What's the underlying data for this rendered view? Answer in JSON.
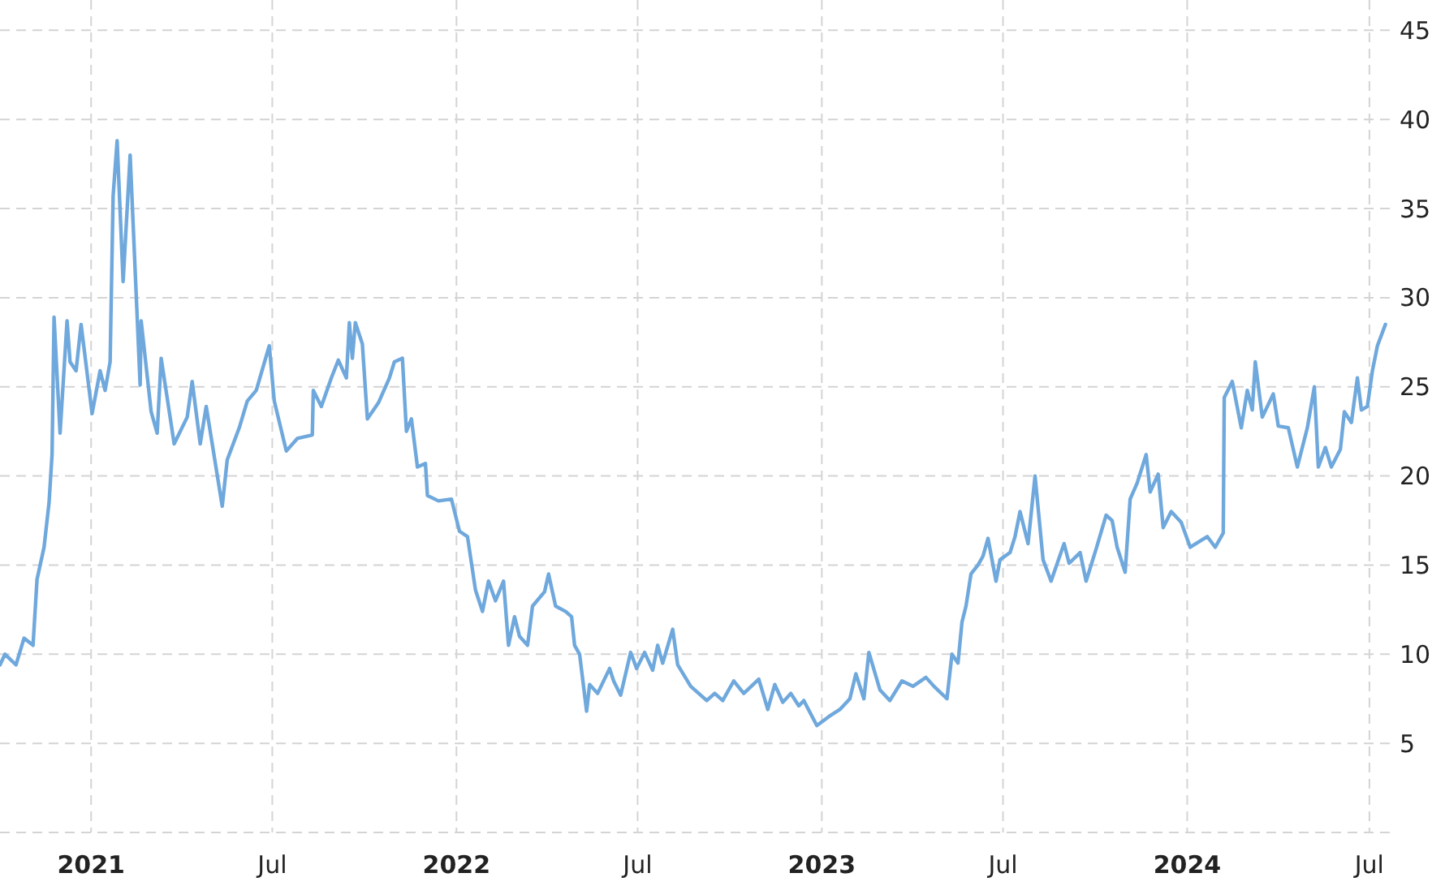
{
  "chart_data": {
    "type": "line",
    "x": [
      "2020-10-02",
      "2020-10-07",
      "2020-10-18",
      "2020-10-26",
      "2020-11-04",
      "2020-11-08",
      "2020-11-15",
      "2020-11-20",
      "2020-11-23",
      "2020-11-25",
      "2020-12-01",
      "2020-12-08",
      "2020-12-11",
      "2020-12-17",
      "2020-12-22",
      "2021-01-02",
      "2021-01-10",
      "2021-01-15",
      "2021-01-20",
      "2021-01-23",
      "2021-01-27",
      "2021-02-02",
      "2021-02-09",
      "2021-02-19",
      "2021-02-20",
      "2021-03-02",
      "2021-03-08",
      "2021-03-12",
      "2021-03-25",
      "2021-04-07",
      "2021-04-12",
      "2021-04-20",
      "2021-04-26",
      "2021-05-12",
      "2021-05-17",
      "2021-05-29",
      "2021-06-06",
      "2021-06-15",
      "2021-06-28",
      "2021-07-03",
      "2021-07-15",
      "2021-07-26",
      "2021-08-10",
      "2021-08-11",
      "2021-08-19",
      "2021-08-29",
      "2021-09-05",
      "2021-09-13",
      "2021-09-16",
      "2021-09-19",
      "2021-09-22",
      "2021-09-29",
      "2021-10-04",
      "2021-10-15",
      "2021-10-26",
      "2021-10-31",
      "2021-11-08",
      "2021-11-12",
      "2021-11-17",
      "2021-11-23",
      "2021-12-01",
      "2021-12-03",
      "2021-12-14",
      "2021-12-27",
      "2022-01-04",
      "2022-01-12",
      "2022-01-20",
      "2022-01-27",
      "2022-02-02",
      "2022-02-09",
      "2022-02-17",
      "2022-02-22",
      "2022-02-28",
      "2022-03-05",
      "2022-03-13",
      "2022-03-18",
      "2022-03-30",
      "2022-04-03",
      "2022-04-10",
      "2022-04-20",
      "2022-04-26",
      "2022-04-29",
      "2022-05-04",
      "2022-05-11",
      "2022-05-14",
      "2022-05-22",
      "2022-06-03",
      "2022-06-07",
      "2022-06-14",
      "2022-06-24",
      "2022-06-30",
      "2022-07-08",
      "2022-07-16",
      "2022-07-21",
      "2022-07-26",
      "2022-08-05",
      "2022-08-10",
      "2022-08-23",
      "2022-09-08",
      "2022-09-16",
      "2022-09-24",
      "2022-10-05",
      "2022-10-15",
      "2022-10-30",
      "2022-11-08",
      "2022-11-15",
      "2022-11-23",
      "2022-12-01",
      "2022-12-09",
      "2022-12-14",
      "2022-12-27",
      "2023-01-08",
      "2023-01-19",
      "2023-01-29",
      "2023-02-04",
      "2023-02-12",
      "2023-02-17",
      "2023-02-28",
      "2023-03-10",
      "2023-03-22",
      "2023-04-02",
      "2023-04-15",
      "2023-04-23",
      "2023-05-06",
      "2023-05-11",
      "2023-05-17",
      "2023-05-21",
      "2023-05-25",
      "2023-05-30",
      "2023-06-06",
      "2023-06-11",
      "2023-06-16",
      "2023-06-24",
      "2023-06-28",
      "2023-07-08",
      "2023-07-13",
      "2023-07-18",
      "2023-07-26",
      "2023-08-02",
      "2023-08-10",
      "2023-08-18",
      "2023-08-31",
      "2023-09-05",
      "2023-09-16",
      "2023-09-22",
      "2023-10-02",
      "2023-10-12",
      "2023-10-18",
      "2023-10-23",
      "2023-10-31",
      "2023-11-05",
      "2023-11-12",
      "2023-11-21",
      "2023-11-25",
      "2023-12-03",
      "2023-12-08",
      "2023-12-16",
      "2023-12-26",
      "2024-01-04",
      "2024-01-21",
      "2024-01-29",
      "2024-02-06",
      "2024-02-07",
      "2024-02-15",
      "2024-02-24",
      "2024-03-01",
      "2024-03-06",
      "2024-03-09",
      "2024-03-16",
      "2024-03-27",
      "2024-04-01",
      "2024-04-11",
      "2024-04-20",
      "2024-04-30",
      "2024-05-07",
      "2024-05-11",
      "2024-05-18",
      "2024-05-24",
      "2024-06-02",
      "2024-06-06",
      "2024-06-13",
      "2024-06-19",
      "2024-06-23",
      "2024-06-29",
      "2024-07-04",
      "2024-07-09",
      "2024-07-17"
    ],
    "series": [
      {
        "color": "#6fa8dc",
        "values": [
          9.4,
          10.0,
          9.4,
          10.9,
          10.5,
          14.2,
          16.0,
          18.5,
          21.2,
          28.9,
          22.4,
          28.7,
          26.4,
          25.9,
          28.5,
          23.5,
          25.9,
          24.8,
          26.4,
          35.7,
          38.8,
          30.9,
          38.0,
          25.1,
          28.7,
          23.6,
          22.4,
          26.6,
          21.8,
          23.3,
          25.3,
          21.8,
          23.9,
          18.3,
          20.9,
          22.7,
          24.2,
          24.8,
          27.3,
          24.2,
          21.4,
          22.1,
          22.3,
          24.8,
          23.9,
          25.5,
          26.5,
          25.5,
          28.6,
          26.6,
          28.6,
          27.4,
          23.2,
          24.1,
          25.5,
          26.4,
          26.6,
          22.5,
          23.2,
          20.5,
          20.7,
          18.9,
          18.6,
          18.7,
          16.9,
          16.6,
          13.6,
          12.4,
          14.1,
          13.0,
          14.1,
          10.5,
          12.1,
          11.0,
          10.5,
          12.7,
          13.5,
          14.5,
          12.7,
          12.4,
          12.1,
          10.5,
          10.0,
          6.8,
          8.3,
          7.8,
          9.2,
          8.5,
          7.7,
          10.1,
          9.2,
          10.1,
          9.1,
          10.5,
          9.5,
          11.4,
          9.4,
          8.2,
          7.4,
          7.8,
          7.4,
          8.5,
          7.8,
          8.6,
          6.9,
          8.3,
          7.3,
          7.8,
          7.1,
          7.4,
          6.0,
          6.5,
          6.9,
          7.5,
          8.9,
          7.5,
          10.1,
          8.0,
          7.4,
          8.5,
          8.2,
          8.7,
          8.2,
          7.5,
          10.0,
          9.5,
          11.8,
          12.7,
          14.5,
          15.0,
          15.5,
          16.5,
          14.1,
          15.3,
          15.7,
          16.6,
          18.0,
          16.2,
          20.0,
          15.3,
          14.1,
          16.2,
          15.1,
          15.7,
          14.1,
          15.9,
          17.8,
          17.5,
          16.0,
          14.6,
          18.7,
          19.6,
          21.2,
          19.1,
          20.1,
          17.1,
          18.0,
          17.4,
          16.0,
          16.6,
          16.0,
          16.8,
          24.4,
          25.3,
          22.7,
          24.8,
          23.7,
          26.4,
          23.3,
          24.6,
          22.8,
          22.7,
          20.5,
          22.7,
          25.0,
          20.5,
          21.6,
          20.5,
          21.5,
          23.6,
          23.0,
          25.5,
          23.7,
          23.9,
          25.9,
          27.3,
          28.5
        ]
      }
    ],
    "xlim": [
      "2020-10-02",
      "2024-07-23"
    ],
    "xticks": [
      {
        "value": "2021-01-01",
        "label": "2021"
      },
      {
        "value": "2021-07-01",
        "label": "Jul"
      },
      {
        "value": "2022-01-01",
        "label": "2022"
      },
      {
        "value": "2022-07-01",
        "label": "Jul"
      },
      {
        "value": "2023-01-01",
        "label": "2023"
      },
      {
        "value": "2023-07-01",
        "label": "Jul"
      },
      {
        "value": "2024-01-01",
        "label": "2024"
      },
      {
        "value": "2024-07-01",
        "label": "Jul"
      }
    ],
    "ylim": [
      0,
      46.7
    ],
    "yticks": [
      {
        "value": 0,
        "label": null
      },
      5,
      10,
      15,
      20,
      25,
      30,
      35,
      40,
      45
    ],
    "grid": true,
    "marker": "none",
    "line_style": "solid"
  }
}
